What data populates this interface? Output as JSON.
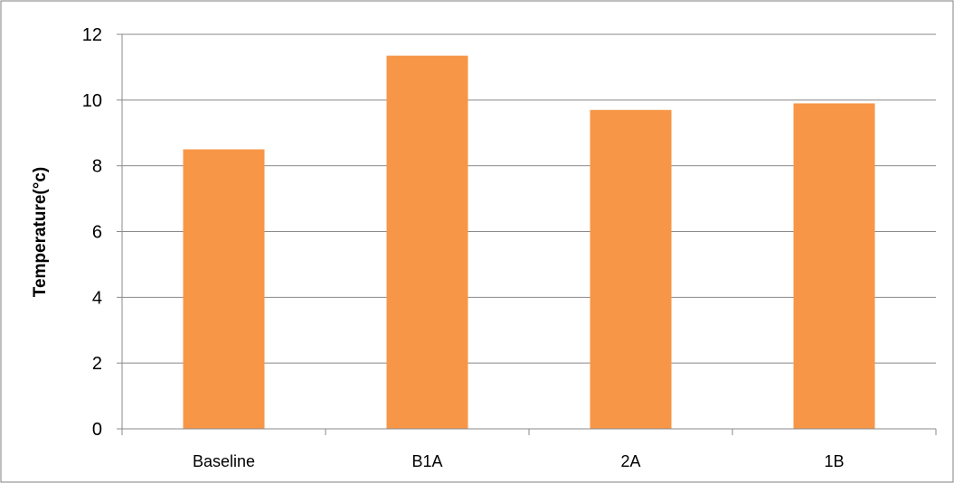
{
  "chart_data": {
    "type": "bar",
    "title": "",
    "xlabel": "",
    "ylabel": "Temperature(°c)",
    "categories": [
      "Baseline",
      "B1A",
      "2A",
      "1B"
    ],
    "values": [
      8.5,
      11.35,
      9.7,
      9.9
    ],
    "ylim": [
      0,
      12
    ],
    "yticks": [
      "0",
      "2",
      "4",
      "6",
      "8",
      "10",
      "12"
    ],
    "grid": true,
    "legend": "none",
    "colors": {
      "bar": "#F79646",
      "grid": "#898989",
      "axis": "#898989",
      "frame": "#7f7f7f"
    }
  }
}
